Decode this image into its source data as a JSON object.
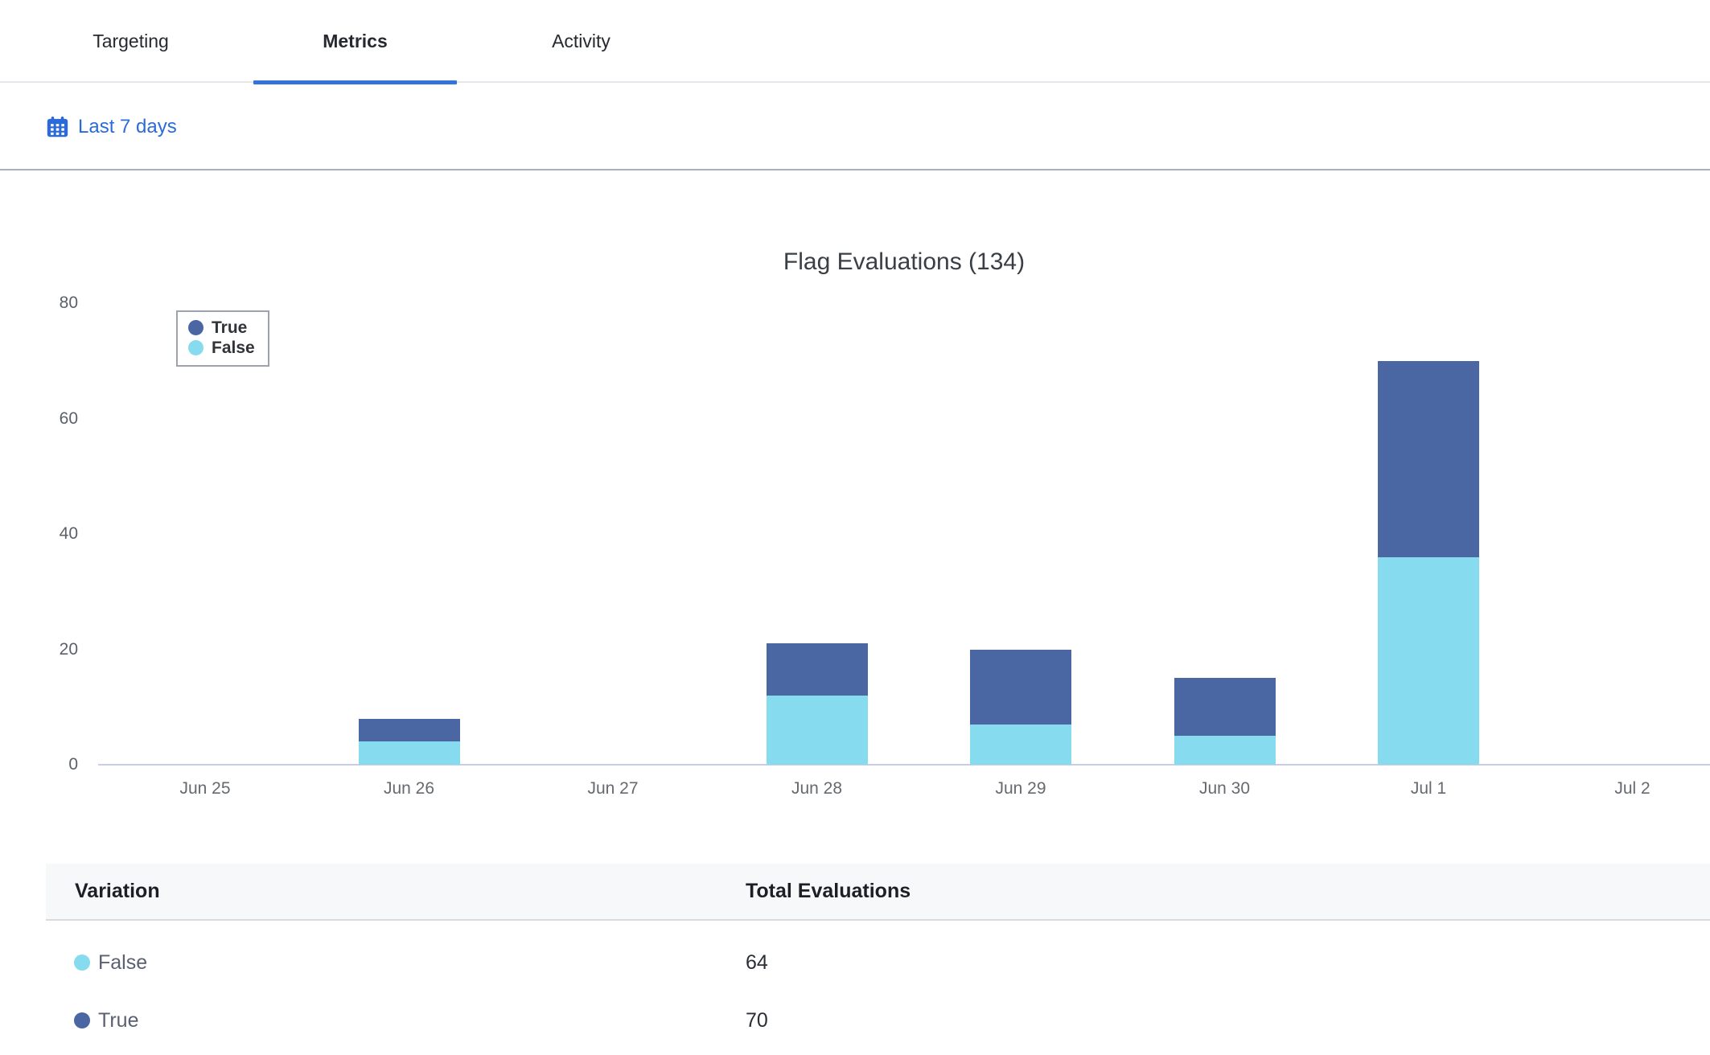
{
  "tabs": {
    "items": [
      {
        "label": "Targeting",
        "active": false
      },
      {
        "label": "Metrics",
        "active": true
      },
      {
        "label": "Activity",
        "active": false
      }
    ]
  },
  "filter": {
    "date_range_label": "Last 7 days"
  },
  "chart_data": {
    "type": "bar",
    "stacked": true,
    "title": "Flag Evaluations (134)",
    "total_evaluations": 134,
    "categories": [
      "Jun 25",
      "Jun 26",
      "Jun 27",
      "Jun 28",
      "Jun 29",
      "Jun 30",
      "Jul 1",
      "Jul 2"
    ],
    "series": [
      {
        "name": "True",
        "color": "#4A66A3",
        "values": [
          0,
          4,
          0,
          9,
          13,
          10,
          34,
          0
        ]
      },
      {
        "name": "False",
        "color": "#87DBEE",
        "values": [
          0,
          4,
          0,
          12,
          7,
          5,
          36,
          0
        ]
      }
    ],
    "ylim": [
      0,
      80
    ],
    "yticks": [
      0,
      20,
      40,
      60,
      80
    ],
    "legend_position": "top-left",
    "grid": false,
    "axis_line_color": "#C9CEE6"
  },
  "table": {
    "columns": [
      "Variation",
      "Total Evaluations"
    ],
    "rows": [
      {
        "variation": "False",
        "color": "#87DBEE",
        "total": "64"
      },
      {
        "variation": "True",
        "color": "#4A66A3",
        "total": "70"
      }
    ]
  },
  "colors": {
    "accent_link": "#2B6BD9",
    "active_tab_underline": "#3273DC",
    "true_series": "#4A66A3",
    "false_series": "#87DBEE"
  }
}
